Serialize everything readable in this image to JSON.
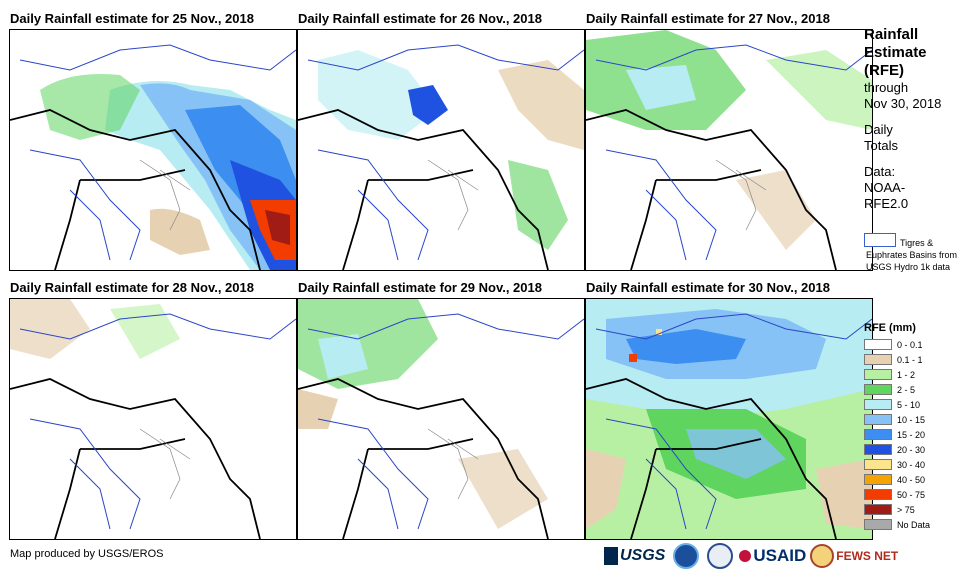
{
  "panels": [
    {
      "title": "Daily Rainfall estimate for 25 Nov., 2018"
    },
    {
      "title": "Daily Rainfall estimate for 26 Nov., 2018"
    },
    {
      "title": "Daily Rainfall estimate for 27 Nov., 2018"
    },
    {
      "title": "Daily Rainfall estimate for 28 Nov., 2018"
    },
    {
      "title": "Daily Rainfall estimate for 29 Nov., 2018"
    },
    {
      "title": "Daily Rainfall estimate for 30 Nov., 2018"
    }
  ],
  "sidebar": {
    "title_1": "Rainfall",
    "title_2": "Estimate",
    "title_3": "(RFE)",
    "through": "through",
    "date": "Nov 30, 2018",
    "daily": "Daily",
    "totals": "Totals",
    "data_label": "Data:",
    "source_1": "NOAA-",
    "source_2": "RFE2.0",
    "basin_text": "Tigres & Euphrates Basins from USGS Hydro 1k data"
  },
  "legend": {
    "title": "RFE (mm)",
    "items": [
      {
        "label": "0 - 0.1",
        "color": "#ffffff"
      },
      {
        "label": "0.1 - 1",
        "color": "#e6d2b2"
      },
      {
        "label": "1 - 2",
        "color": "#b7f0a3"
      },
      {
        "label": "2 - 5",
        "color": "#5fd45f"
      },
      {
        "label": "5 - 10",
        "color": "#b6ecf2"
      },
      {
        "label": "10 - 15",
        "color": "#86c2f5"
      },
      {
        "label": "15 - 20",
        "color": "#3c8ff0"
      },
      {
        "label": "20 - 30",
        "color": "#1f52e0"
      },
      {
        "label": "30 - 40",
        "color": "#fbe48c"
      },
      {
        "label": "40 - 50",
        "color": "#f5a300"
      },
      {
        "label": "50 - 75",
        "color": "#f23c00"
      },
      {
        "label": "> 75",
        "color": "#a01c14"
      },
      {
        "label": "No Data",
        "color": "#a9a9a9"
      }
    ]
  },
  "footer": {
    "credit": "Map produced by USGS/EROS"
  },
  "logos": {
    "usgs": "USGS",
    "usaid": "USAID",
    "fews": "FEWS NET"
  }
}
